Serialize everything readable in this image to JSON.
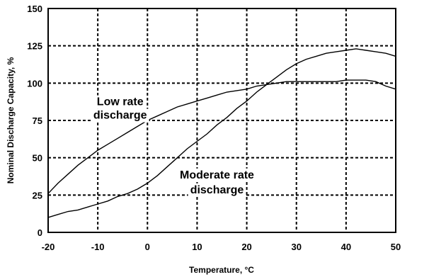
{
  "chart_data": {
    "type": "line",
    "title": "",
    "xlabel": "Temperature, °C",
    "ylabel": "Nominal Discharge Capacity, %",
    "xlim": [
      -20,
      50
    ],
    "ylim": [
      0,
      150
    ],
    "xticks": [
      -20,
      -10,
      0,
      10,
      20,
      30,
      40,
      50
    ],
    "yticks": [
      0,
      25,
      50,
      75,
      100,
      125,
      150
    ],
    "grid": true,
    "legend": "none",
    "series": [
      {
        "id": "low-rate",
        "x": [
          -20,
          -18,
          -16,
          -14,
          -12,
          -10,
          -8,
          -6,
          -4,
          -2,
          0,
          2,
          4,
          6,
          8,
          10,
          12,
          14,
          16,
          18,
          20,
          22,
          24,
          26,
          28,
          30,
          32,
          34,
          36,
          38,
          40,
          42,
          44,
          46,
          48,
          50
        ],
        "y": [
          26,
          33,
          39,
          45,
          50,
          55,
          59,
          63,
          67,
          71,
          75,
          78,
          81,
          84,
          86,
          88,
          90,
          92,
          94,
          95,
          96,
          98,
          99,
          100,
          101,
          101,
          101,
          101,
          101,
          101,
          102,
          102,
          102,
          101,
          98,
          96
        ]
      },
      {
        "id": "moderate-rate",
        "x": [
          -20,
          -18,
          -16,
          -14,
          -12,
          -10,
          -8,
          -6,
          -4,
          -2,
          0,
          2,
          4,
          6,
          8,
          10,
          12,
          14,
          16,
          18,
          20,
          22,
          24,
          26,
          28,
          30,
          32,
          34,
          36,
          38,
          40,
          42,
          44,
          46,
          48,
          50
        ],
        "y": [
          10,
          12,
          14,
          15,
          17,
          19,
          21,
          24,
          26,
          29,
          33,
          38,
          44,
          50,
          56,
          61,
          66,
          72,
          77,
          83,
          88,
          94,
          99,
          104,
          109,
          113,
          116,
          118,
          120,
          121,
          122,
          123,
          122,
          121,
          120,
          118
        ]
      }
    ],
    "annotations": [
      {
        "id": "low-rate-label",
        "lines": [
          "Low rate",
          "discharge"
        ],
        "x": -5.5,
        "y": [
          88,
          79
        ]
      },
      {
        "id": "moderate-rate-label",
        "lines": [
          "Moderate rate",
          "discharge"
        ],
        "x": 14,
        "y": [
          39,
          29
        ]
      }
    ]
  }
}
